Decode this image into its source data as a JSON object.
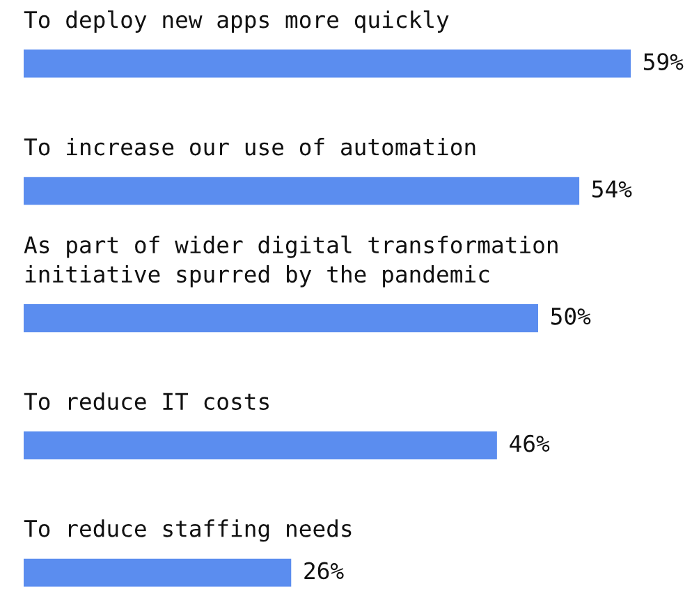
{
  "chart_data": {
    "type": "bar",
    "orientation": "horizontal",
    "categories": [
      "To deploy new apps more quickly",
      "To increase our use of automation",
      "As part of wider digital transformation\ninitiative spurred by the pandemic",
      "To reduce IT costs",
      "To reduce staffing needs"
    ],
    "values": [
      59,
      54,
      50,
      46,
      26
    ],
    "value_labels": [
      "59%",
      "54%",
      "50%",
      "46%",
      "26%"
    ],
    "color": "#5b8def",
    "tick_labels": false
  }
}
